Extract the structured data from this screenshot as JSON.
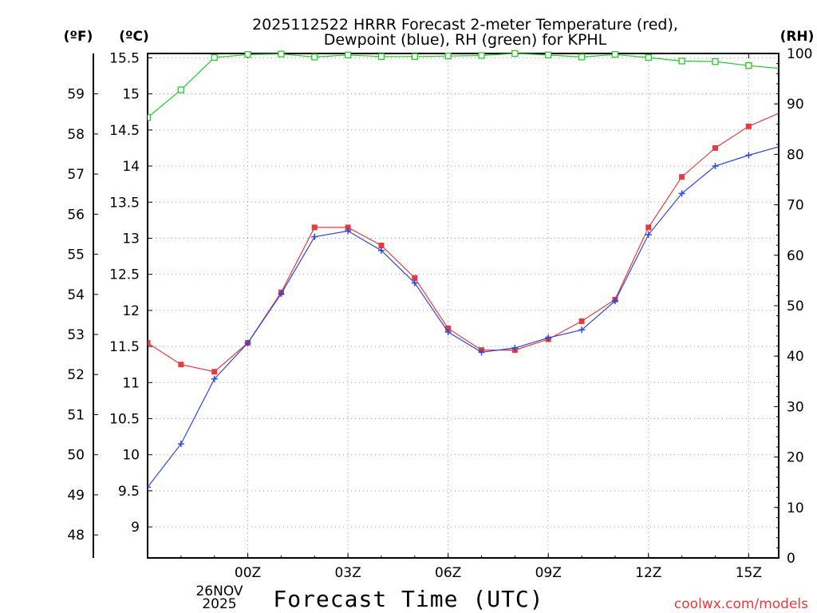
{
  "chart_data": {
    "type": "line",
    "title_line1": "2025112522 HRRR Forecast 2-meter Temperature (red),",
    "title_line2": "Dewpoint (blue), RH (green) for KPHL",
    "xlabel": "Forecast Time (UTC)",
    "credit": "coolwx.com/models",
    "unit_labels": {
      "fahrenheit": "(ºF)",
      "celsius": "(ºC)",
      "rh": "(RH)"
    },
    "x_hours": [
      -3,
      -2,
      -1,
      0,
      1,
      2,
      3,
      4,
      5,
      6,
      7,
      8,
      9,
      10,
      11,
      12,
      13,
      14,
      15,
      16
    ],
    "x_range": [
      -3,
      15.9
    ],
    "x_ticks": [
      {
        "hour": 0,
        "label": "00Z"
      },
      {
        "hour": 3,
        "label": "03Z"
      },
      {
        "hour": 6,
        "label": "06Z"
      },
      {
        "hour": 9,
        "label": "09Z"
      },
      {
        "hour": 12,
        "label": "12Z"
      },
      {
        "hour": 15,
        "label": "15Z"
      }
    ],
    "date_label_line1": "26NOV",
    "date_label_line2": "2025",
    "celsius_range": [
      8.57,
      15.56
    ],
    "celsius_ticks": [
      "9",
      "9.5",
      "10",
      "10.5",
      "11",
      "11.5",
      "12",
      "12.5",
      "13",
      "13.5",
      "14",
      "14.5",
      "15",
      "15.5"
    ],
    "fahrenheit_ticks": [
      "48",
      "49",
      "50",
      "51",
      "52",
      "53",
      "54",
      "55",
      "56",
      "57",
      "58",
      "59"
    ],
    "rh_range": [
      0,
      100
    ],
    "rh_ticks": [
      "0",
      "10",
      "20",
      "30",
      "40",
      "50",
      "60",
      "70",
      "80",
      "90",
      "100"
    ],
    "series": [
      {
        "name": "Temperature",
        "color": "#e8393c",
        "marker": "filled-square",
        "values": [
          11.55,
          11.25,
          11.15,
          11.55,
          12.25,
          13.15,
          13.15,
          12.9,
          12.45,
          11.75,
          11.45,
          11.45,
          11.6,
          11.85,
          12.15,
          13.15,
          13.85,
          14.25,
          14.55,
          14.75
        ]
      },
      {
        "name": "Dewpoint",
        "color": "#2b48e0",
        "marker": "plus",
        "values": [
          9.55,
          10.15,
          11.05,
          11.55,
          12.23,
          13.02,
          13.1,
          12.83,
          12.38,
          11.7,
          11.42,
          11.48,
          11.62,
          11.73,
          12.13,
          13.05,
          13.62,
          14.0,
          14.15,
          14.28
        ]
      },
      {
        "name": "RH",
        "color": "#22cc22",
        "marker": "open-square",
        "values": [
          87.3,
          92.8,
          99.2,
          99.8,
          99.9,
          99.3,
          99.7,
          99.4,
          99.4,
          99.5,
          99.6,
          100.0,
          99.7,
          99.3,
          99.8,
          99.2,
          98.5,
          98.4,
          97.6,
          97.0
        ]
      }
    ]
  }
}
